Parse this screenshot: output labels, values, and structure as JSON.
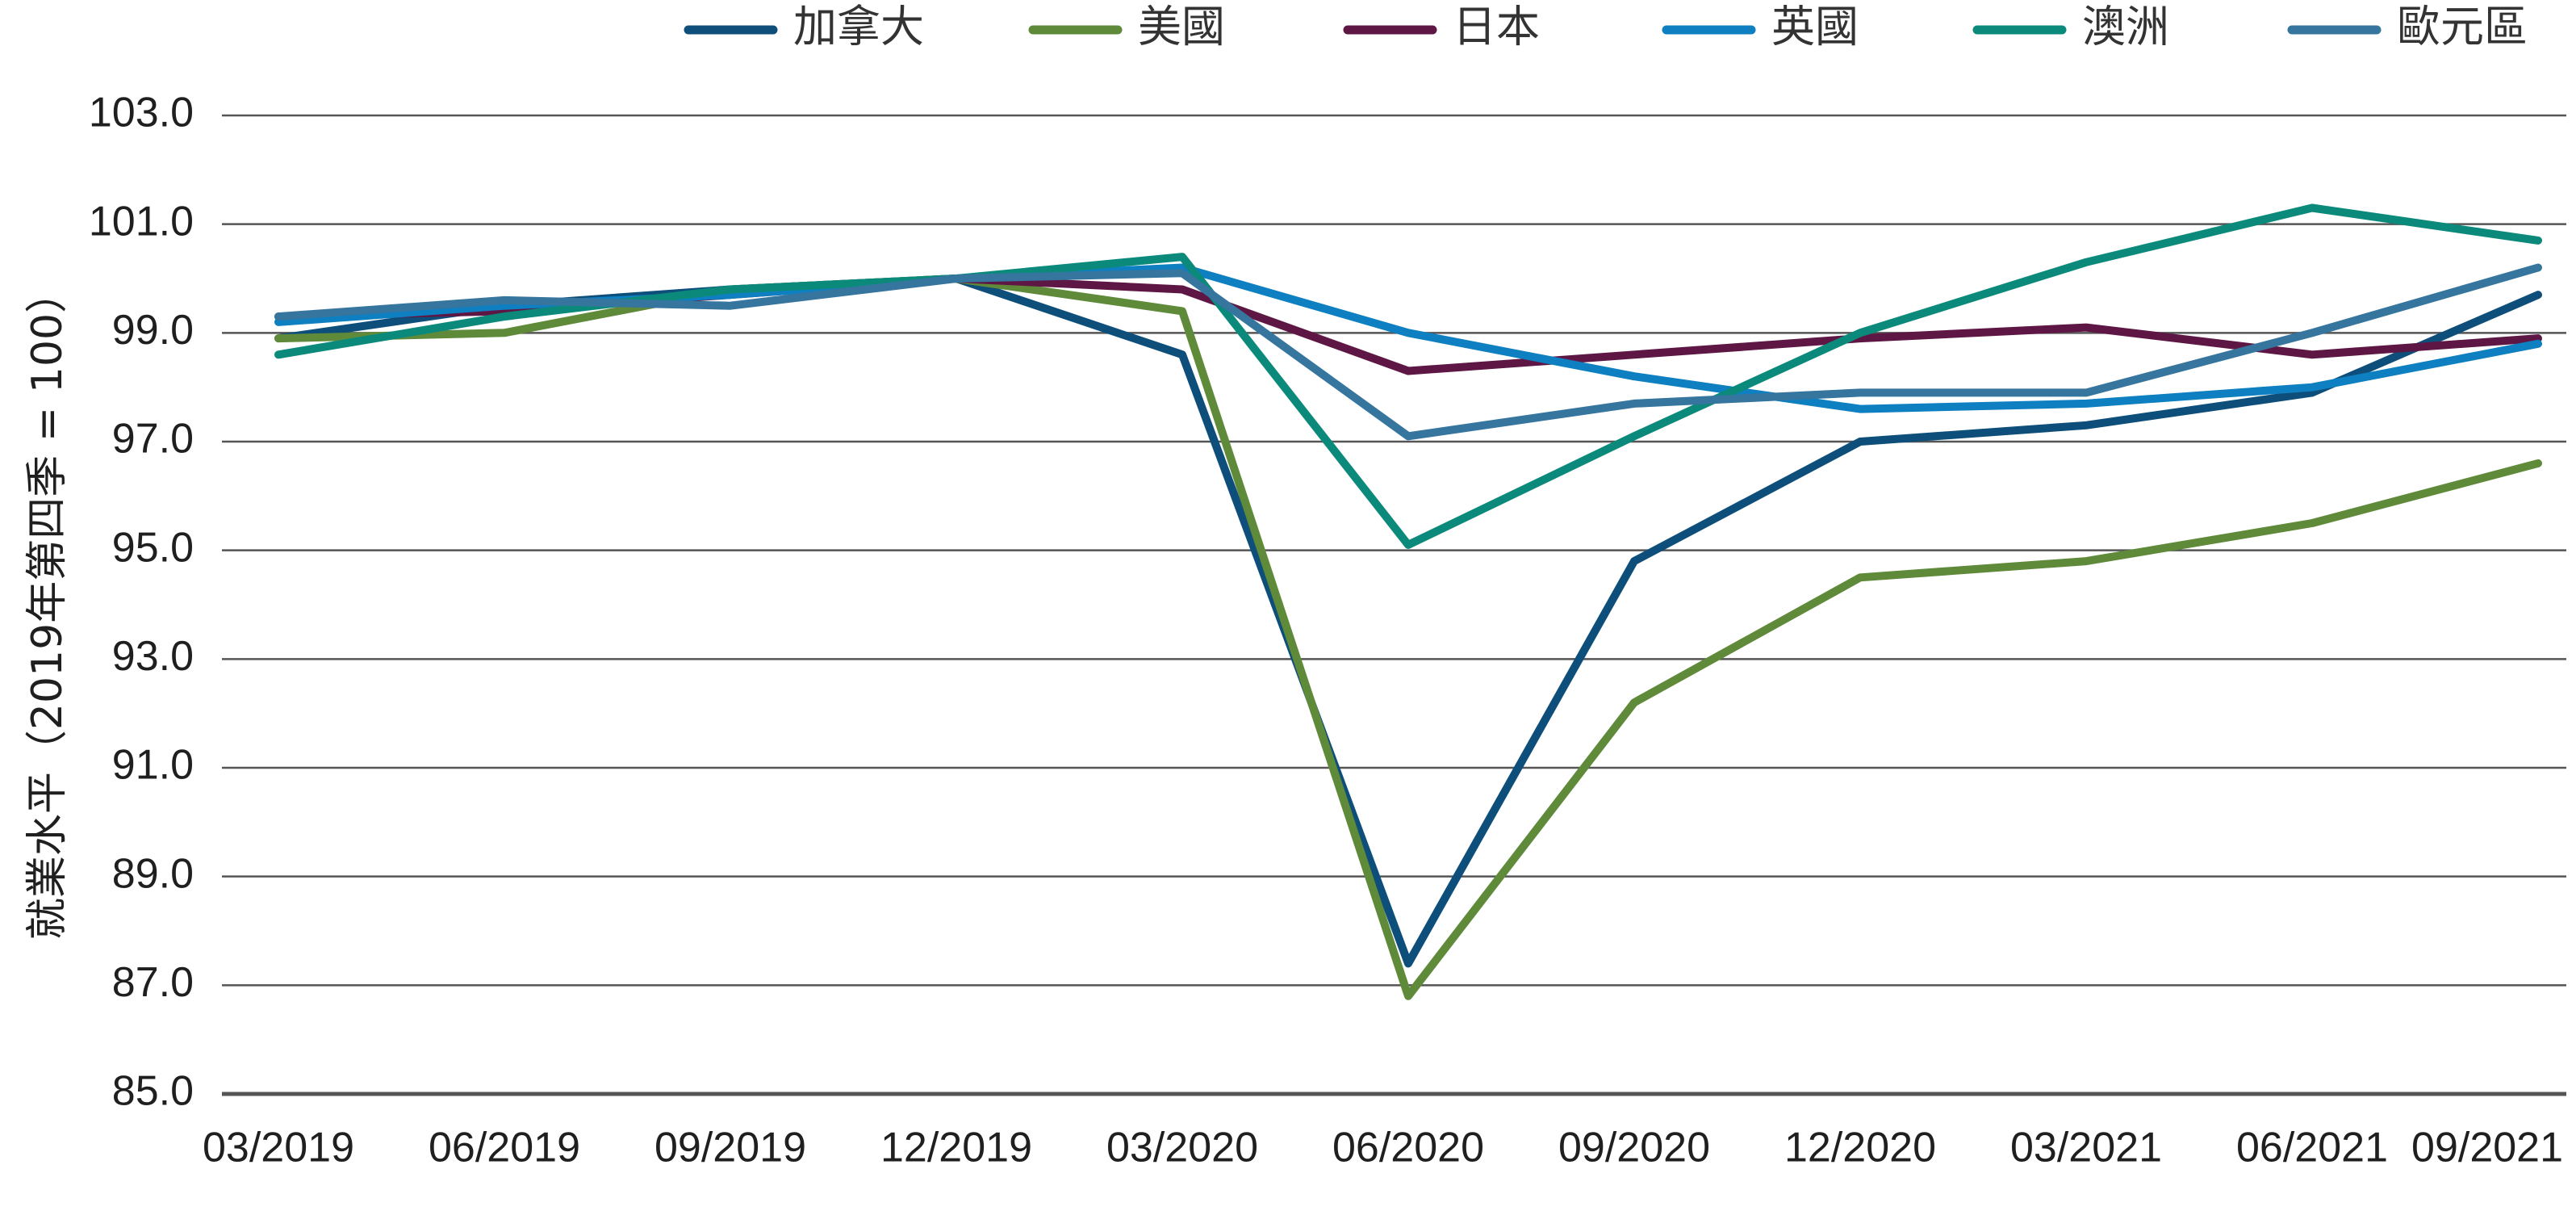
{
  "chart_data": {
    "type": "line",
    "title": "",
    "xlabel": "",
    "ylabel": "就業水平（2019年第四季 = 100）",
    "ylim": [
      85,
      103
    ],
    "yticks": [
      85.0,
      87.0,
      89.0,
      91.0,
      93.0,
      95.0,
      97.0,
      99.0,
      101.0,
      103.0
    ],
    "ytick_labels": [
      "85.0",
      "87.0",
      "89.0",
      "91.0",
      "93.0",
      "95.0",
      "97.0",
      "99.0",
      "101.0",
      "103.0"
    ],
    "grid": "horizontal",
    "legend_position": "top",
    "categories": [
      "03/2019",
      "06/2019",
      "09/2019",
      "12/2019",
      "03/2020",
      "06/2020",
      "09/2020",
      "12/2020",
      "03/2021",
      "06/2021",
      "09/2021"
    ],
    "series": [
      {
        "name": "加拿大",
        "color": "#0d4f7a",
        "values": [
          98.9,
          99.5,
          99.8,
          100.0,
          98.6,
          87.4,
          94.8,
          97.0,
          97.3,
          97.9,
          99.7
        ]
      },
      {
        "name": "美國",
        "color": "#5f8a3a",
        "values": [
          98.9,
          99.0,
          99.8,
          100.0,
          99.4,
          86.8,
          92.2,
          94.5,
          94.8,
          95.5,
          96.6
        ]
      },
      {
        "name": "日本",
        "color": "#5e1744",
        "values": [
          99.3,
          99.4,
          99.7,
          100.0,
          99.8,
          98.3,
          98.6,
          98.9,
          99.1,
          98.6,
          98.9
        ]
      },
      {
        "name": "英國",
        "color": "#0e7fc0",
        "values": [
          99.2,
          99.5,
          99.7,
          100.0,
          100.2,
          99.0,
          98.2,
          97.6,
          97.7,
          98.0,
          98.8
        ]
      },
      {
        "name": "澳洲",
        "color": "#0b8a7c",
        "values": [
          98.6,
          99.3,
          99.8,
          100.0,
          100.4,
          95.1,
          97.1,
          99.0,
          100.3,
          101.3,
          100.7
        ]
      },
      {
        "name": "歐元區",
        "color": "#35759e",
        "values": [
          99.3,
          99.6,
          99.5,
          100.0,
          100.1,
          97.1,
          97.7,
          97.9,
          97.9,
          99.0,
          100.2
        ]
      }
    ]
  }
}
